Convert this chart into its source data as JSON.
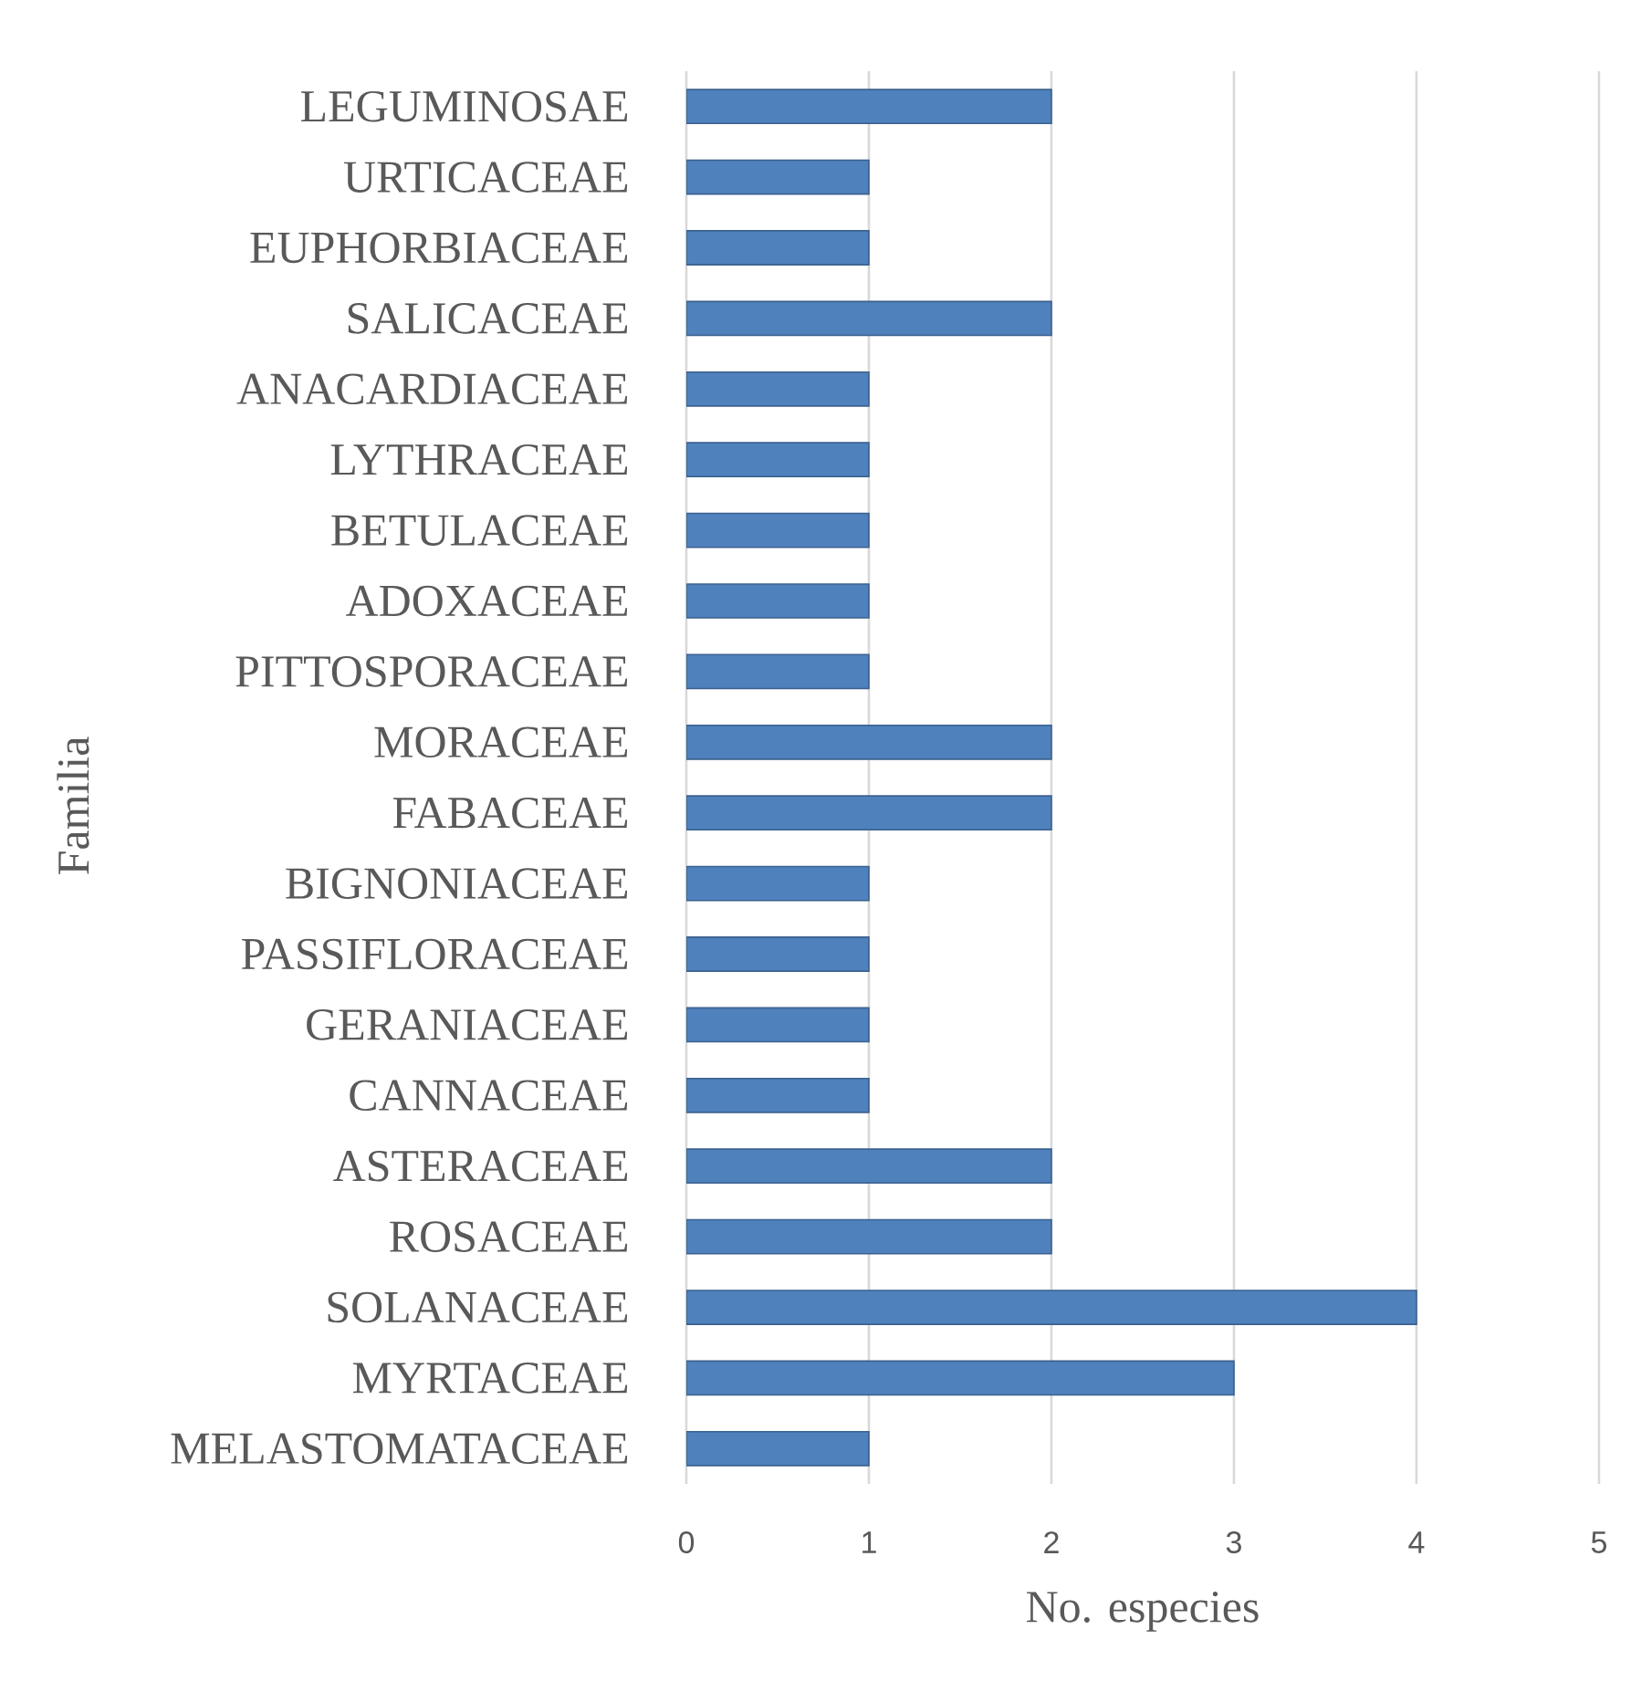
{
  "chart_data": {
    "type": "bar",
    "orientation": "horizontal",
    "xlabel": "No. especies",
    "ylabel": "Familia",
    "categories": [
      "LEGUMINOSAE",
      "URTICACEAE",
      "EUPHORBIACEAE",
      "SALICACEAE",
      "ANACARDIACEAE",
      "LYTHRACEAE",
      "BETULACEAE",
      "ADOXACEAE",
      "PITTOSPORACEAE",
      "MORACEAE",
      "FABACEAE",
      "BIGNONIACEAE",
      "PASSIFLORACEAE",
      "GERANIACEAE",
      "CANNACEAE",
      "ASTERACEAE",
      "ROSACEAE",
      "SOLANACEAE",
      "MYRTACEAE",
      "MELASTOMATACEAE"
    ],
    "values": [
      2,
      1,
      1,
      2,
      1,
      1,
      1,
      1,
      1,
      2,
      2,
      1,
      1,
      1,
      1,
      2,
      2,
      4,
      3,
      1
    ],
    "color": "#4f81bd",
    "xlim": [
      0,
      5
    ],
    "xticks": [
      0,
      1,
      2,
      3,
      4,
      5
    ],
    "grid": "x"
  }
}
